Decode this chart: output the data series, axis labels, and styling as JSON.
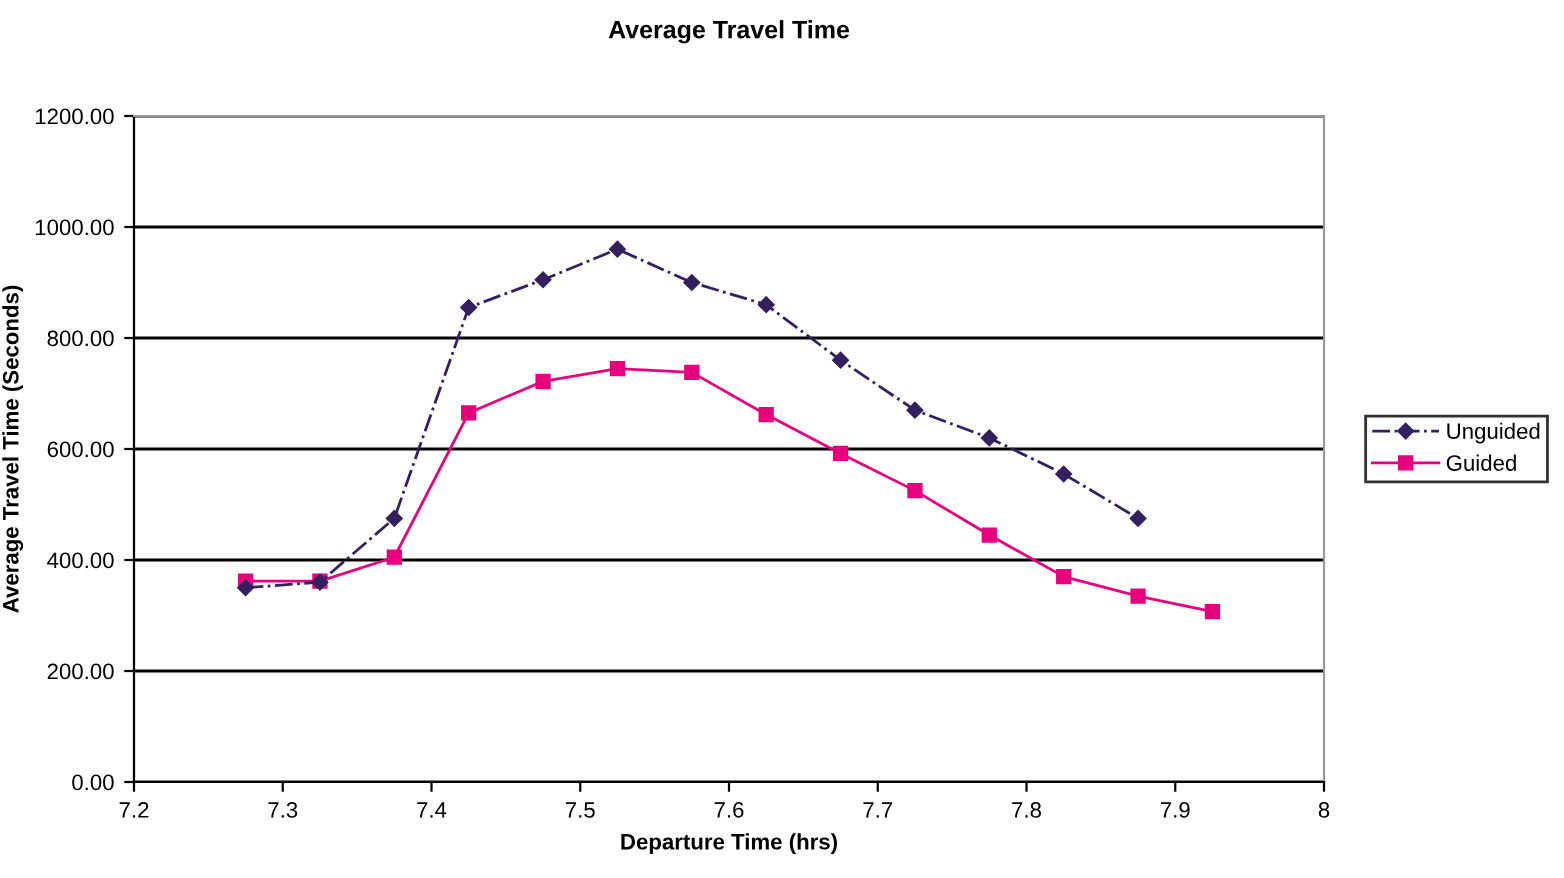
{
  "chart_data": {
    "type": "line",
    "title": "Average Travel Time",
    "xlabel": "Departure Time (hrs)",
    "ylabel": "Average Travel Time (Seconds)",
    "xlim": [
      7.2,
      8
    ],
    "xticks": [
      7.2,
      7.3,
      7.4,
      7.5,
      7.6,
      7.7,
      7.8,
      7.9,
      8
    ],
    "ylim": [
      0,
      1200
    ],
    "yticks": [
      {
        "value": 0,
        "label": "0.00"
      },
      {
        "value": 200,
        "label": "200.00"
      },
      {
        "value": 400,
        "label": "400.00"
      },
      {
        "value": 600,
        "label": "600.00"
      },
      {
        "value": 800,
        "label": "800.00"
      },
      {
        "value": 1000,
        "label": "1000.00"
      },
      {
        "value": 1200,
        "label": "1200.00"
      }
    ],
    "grid": "y",
    "legend": "right",
    "series": [
      {
        "name": "Unguided",
        "color": "#33205e",
        "marker": "diamond",
        "line_style": "dashdot",
        "x": [
          7.275,
          7.325,
          7.375,
          7.425,
          7.475,
          7.525,
          7.575,
          7.625,
          7.675,
          7.725,
          7.775,
          7.825,
          7.875
        ],
        "values": [
          350,
          360,
          475,
          855,
          905,
          960,
          900,
          860,
          760,
          670,
          620,
          555,
          475
        ]
      },
      {
        "name": "Guided",
        "color": "#e6007e",
        "marker": "square",
        "line_style": "solid",
        "x": [
          7.275,
          7.325,
          7.375,
          7.425,
          7.475,
          7.525,
          7.575,
          7.625,
          7.675,
          7.725,
          7.775,
          7.825,
          7.875,
          7.925
        ],
        "values": [
          362,
          362,
          405,
          665,
          722,
          745,
          738,
          662,
          592,
          525,
          445,
          370,
          335,
          307
        ]
      }
    ]
  }
}
